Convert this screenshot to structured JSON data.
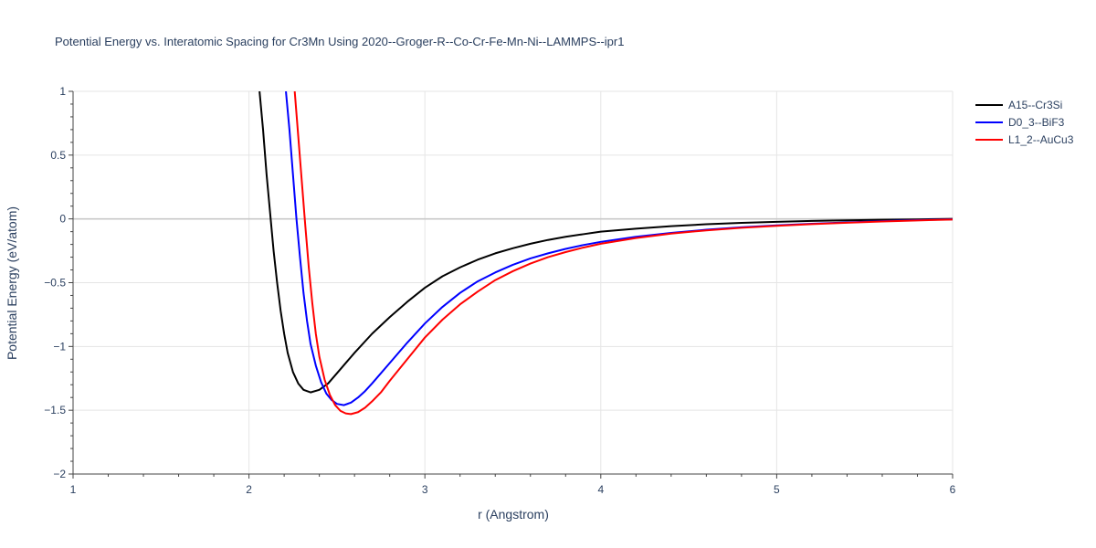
{
  "chart_data": {
    "type": "line",
    "title": "Potential Energy vs. Interatomic Spacing for Cr3Mn Using 2020--Groger-R--Co-Cr-Fe-Mn-Ni--LAMMPS--ipr1",
    "xlabel": "r (Angstrom)",
    "ylabel": "Potential Energy (eV/atom)",
    "xlim": [
      1,
      6
    ],
    "ylim": [
      -2,
      1
    ],
    "xticks": [
      1,
      2,
      3,
      4,
      5,
      6
    ],
    "xtick_labels": [
      "1",
      "2",
      "3",
      "4",
      "5",
      "6"
    ],
    "yticks": [
      -2,
      -1.5,
      -1,
      -0.5,
      0,
      0.5,
      1
    ],
    "ytick_labels": [
      "−2",
      "−1.5",
      "−1",
      "−0.5",
      "0",
      "0.5",
      "1"
    ],
    "grid": true,
    "legend_position": "top-right",
    "series": [
      {
        "name": "A15--Cr3Si",
        "color": "#000000",
        "x": [
          2.06,
          2.08,
          2.1,
          2.12,
          2.14,
          2.16,
          2.18,
          2.2,
          2.22,
          2.25,
          2.28,
          2.31,
          2.35,
          2.4,
          2.45,
          2.5,
          2.6,
          2.7,
          2.8,
          2.9,
          3.0,
          3.1,
          3.2,
          3.3,
          3.4,
          3.5,
          3.6,
          3.7,
          3.8,
          3.9,
          4.0,
          4.2,
          4.4,
          4.6,
          4.8,
          5.0,
          5.2,
          5.4,
          5.6,
          5.8,
          6.0
        ],
        "y": [
          1.0,
          0.7,
          0.35,
          0.05,
          -0.25,
          -0.5,
          -0.72,
          -0.9,
          -1.05,
          -1.2,
          -1.29,
          -1.34,
          -1.36,
          -1.34,
          -1.29,
          -1.21,
          -1.05,
          -0.9,
          -0.77,
          -0.65,
          -0.54,
          -0.45,
          -0.38,
          -0.32,
          -0.27,
          -0.23,
          -0.195,
          -0.165,
          -0.14,
          -0.12,
          -0.1,
          -0.077,
          -0.057,
          -0.042,
          -0.031,
          -0.023,
          -0.016,
          -0.011,
          -0.007,
          -0.004,
          0.0
        ]
      },
      {
        "name": "D0_3--BiF3",
        "color": "#0000ff",
        "x": [
          2.21,
          2.23,
          2.25,
          2.27,
          2.29,
          2.31,
          2.33,
          2.35,
          2.38,
          2.41,
          2.44,
          2.47,
          2.5,
          2.54,
          2.58,
          2.62,
          2.66,
          2.7,
          2.8,
          2.9,
          3.0,
          3.1,
          3.2,
          3.3,
          3.4,
          3.5,
          3.6,
          3.7,
          3.8,
          3.9,
          4.0,
          4.2,
          4.4,
          4.6,
          4.8,
          5.0,
          5.2,
          5.4,
          5.6,
          5.8,
          6.0
        ],
        "y": [
          1.0,
          0.7,
          0.35,
          0.0,
          -0.3,
          -0.58,
          -0.8,
          -0.98,
          -1.15,
          -1.28,
          -1.37,
          -1.42,
          -1.45,
          -1.46,
          -1.44,
          -1.4,
          -1.35,
          -1.29,
          -1.13,
          -0.97,
          -0.82,
          -0.69,
          -0.58,
          -0.49,
          -0.42,
          -0.36,
          -0.31,
          -0.27,
          -0.235,
          -0.205,
          -0.18,
          -0.14,
          -0.11,
          -0.085,
          -0.066,
          -0.051,
          -0.038,
          -0.027,
          -0.018,
          -0.01,
          -0.003
        ]
      },
      {
        "name": "L1_2--AuCu3",
        "color": "#ff0000",
        "x": [
          2.26,
          2.28,
          2.3,
          2.32,
          2.34,
          2.36,
          2.38,
          2.4,
          2.43,
          2.46,
          2.49,
          2.52,
          2.55,
          2.58,
          2.62,
          2.66,
          2.7,
          2.75,
          2.8,
          2.9,
          3.0,
          3.1,
          3.2,
          3.3,
          3.4,
          3.5,
          3.6,
          3.7,
          3.8,
          3.9,
          4.0,
          4.2,
          4.4,
          4.6,
          4.8,
          5.0,
          5.2,
          5.4,
          5.6,
          5.8,
          6.0
        ],
        "y": [
          1.0,
          0.65,
          0.3,
          -0.05,
          -0.38,
          -0.66,
          -0.9,
          -1.08,
          -1.26,
          -1.38,
          -1.46,
          -1.505,
          -1.525,
          -1.53,
          -1.515,
          -1.48,
          -1.43,
          -1.36,
          -1.27,
          -1.1,
          -0.93,
          -0.79,
          -0.67,
          -0.57,
          -0.48,
          -0.41,
          -0.35,
          -0.3,
          -0.26,
          -0.225,
          -0.195,
          -0.15,
          -0.115,
          -0.09,
          -0.07,
          -0.054,
          -0.041,
          -0.03,
          -0.02,
          -0.012,
          -0.005
        ]
      }
    ]
  }
}
